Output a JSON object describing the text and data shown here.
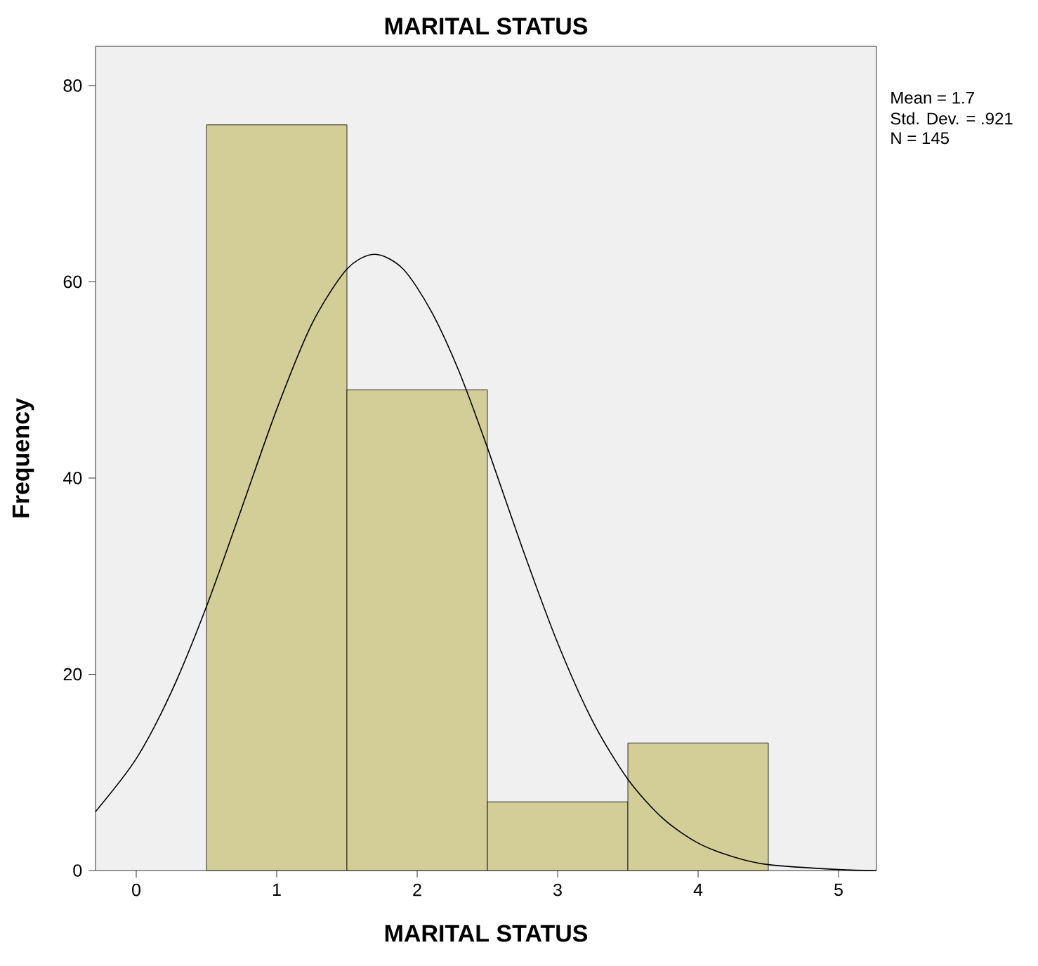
{
  "chart_data": {
    "type": "histogram",
    "title": "MARITAL STATUS",
    "xlabel": "MARITAL STATUS",
    "ylabel": "Frequency",
    "bins": [
      0.5,
      1.5,
      2.5,
      3.5,
      4.5
    ],
    "values": [
      76,
      49,
      7,
      13
    ],
    "color": "#d3ce98",
    "series": [
      {
        "type": "line",
        "color": "#000000",
        "x": [
          -0.29,
          0,
          0.25,
          0.5,
          0.75,
          1,
          1.25,
          1.5,
          1.7,
          1.9,
          2.1,
          2.3,
          2.5,
          2.75,
          3,
          3.25,
          3.5,
          3.75,
          4,
          4.25,
          4.5,
          5,
          5.27
        ],
        "values": [
          6.0,
          11.4,
          18.2,
          26.9,
          36.9,
          47.0,
          55.7,
          61.3,
          62.8,
          61.3,
          57.0,
          50.8,
          43.1,
          32.8,
          23.2,
          15.2,
          9.3,
          5.3,
          2.8,
          1.4,
          0.6,
          0.1,
          0
        ]
      }
    ],
    "xlim": [
      -0.29,
      5.27
    ],
    "xticks": [
      0,
      1,
      2,
      3,
      4,
      5
    ],
    "ylim": [
      0,
      84
    ],
    "yticks": [
      0,
      20,
      40,
      60,
      80
    ],
    "annotations": [
      "Mean = 1.7",
      "Std. Dev. = .921",
      "N = 145"
    ]
  }
}
